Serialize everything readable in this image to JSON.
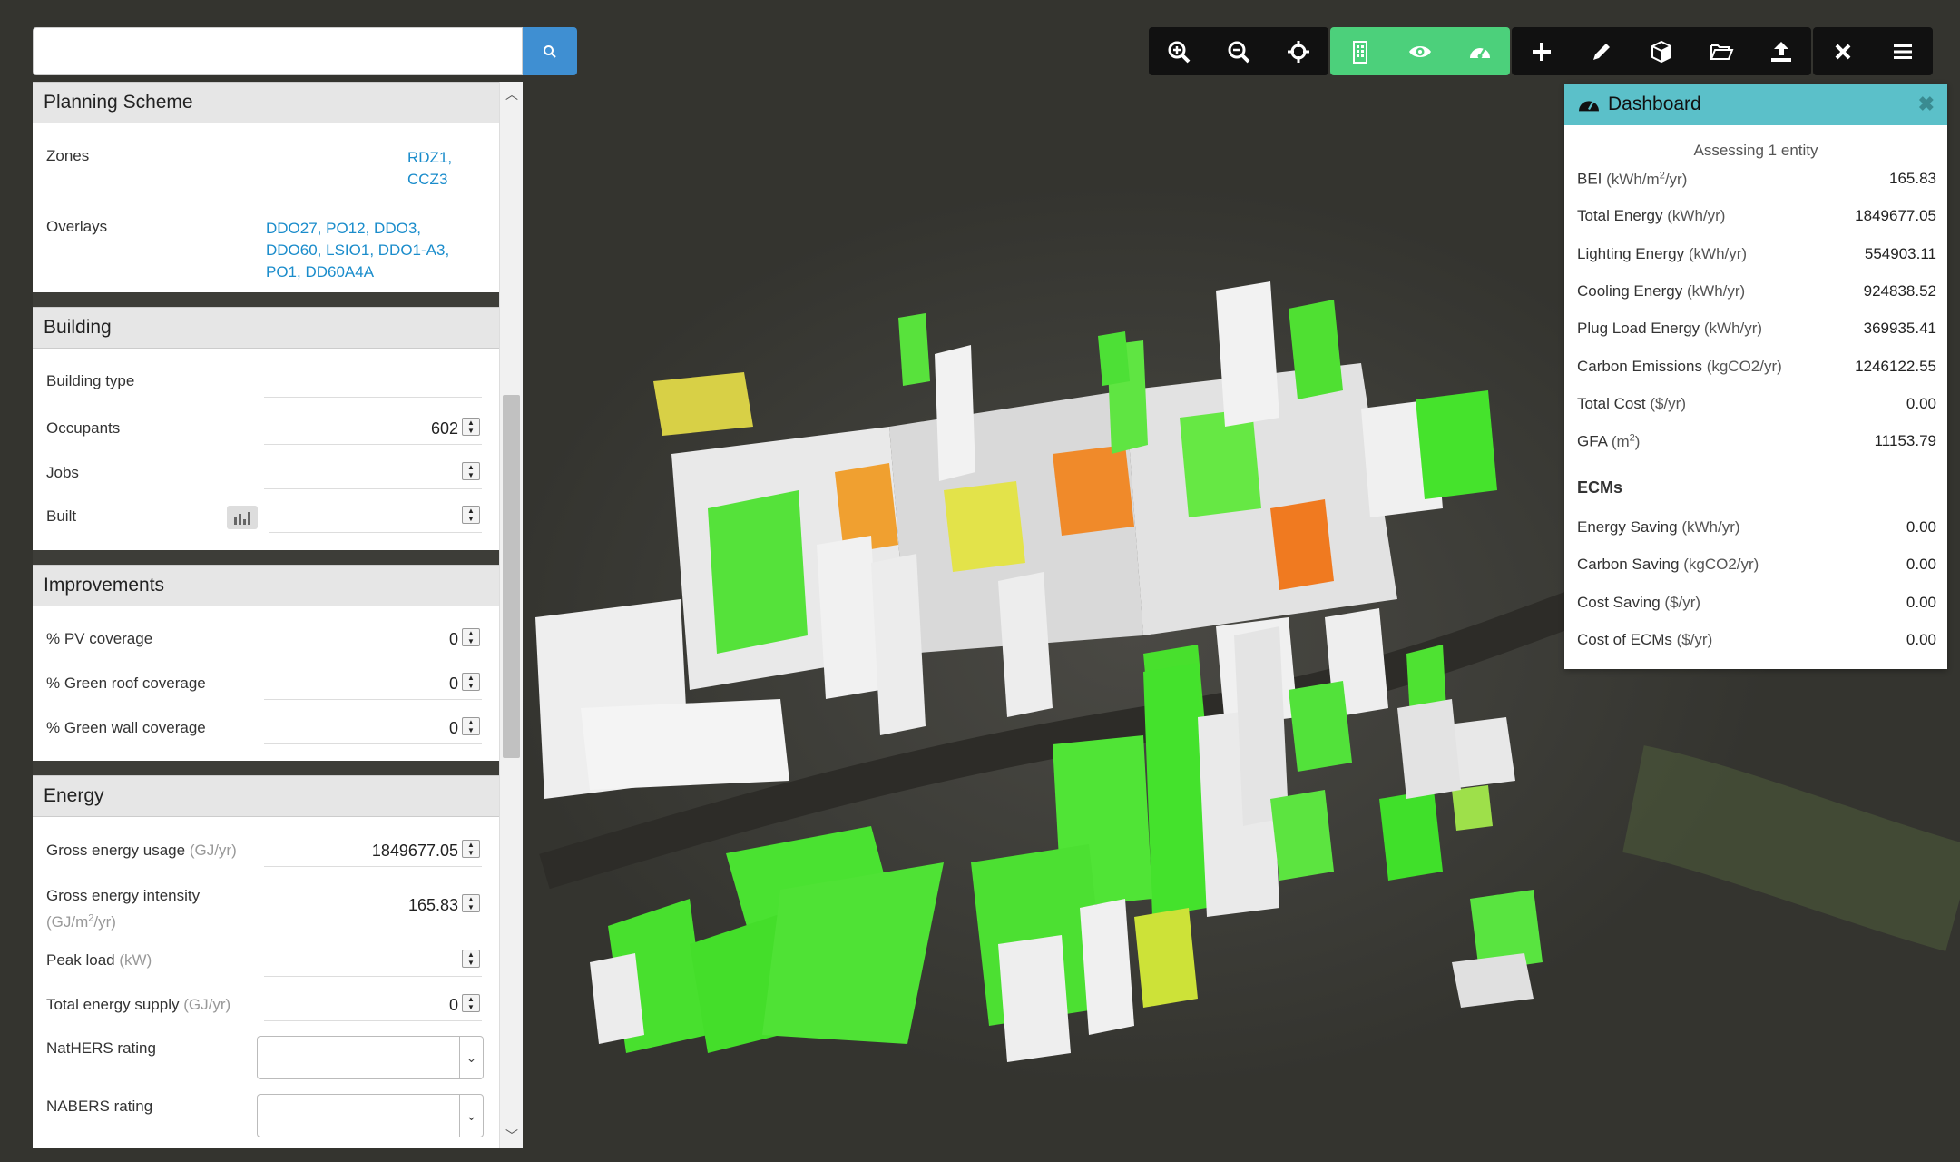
{
  "search": {
    "placeholder": ""
  },
  "colors": {
    "accent_blue": "#3f8fd2",
    "toolbar_black": "#111111",
    "toolbar_green": "#4cd07b",
    "dashboard_header": "#5bc0c9",
    "link": "#1a8ccb"
  },
  "planning_scheme": {
    "title": "Planning Scheme",
    "zones_label": "Zones",
    "zones": [
      "RDZ1,",
      "CCZ3"
    ],
    "overlays_label": "Overlays",
    "overlays_line1": "DDO27, PO12, DDO3,",
    "overlays_line2": "DDO60, LSIO1, DDO1-A3,",
    "overlays_line3": "PO1, DD60A4A"
  },
  "building": {
    "title": "Building",
    "type_label": "Building type",
    "occupants_label": "Occupants",
    "occupants_value": "602",
    "jobs_label": "Jobs",
    "built_label": "Built"
  },
  "improvements": {
    "title": "Improvements",
    "pv_label": "% PV coverage",
    "pv_value": "0",
    "green_roof_label": "% Green roof coverage",
    "green_roof_value": "0",
    "green_wall_label": "% Green wall coverage",
    "green_wall_value": "0"
  },
  "energy": {
    "title": "Energy",
    "gross_usage_label": "Gross energy usage",
    "gross_usage_unit": "(GJ/yr)",
    "gross_usage_value": "1849677.05",
    "gross_intensity_label": "Gross energy intensity",
    "gross_intensity_unit_a": "(GJ/m",
    "gross_intensity_unit_sup": "2",
    "gross_intensity_unit_b": "/yr)",
    "gross_intensity_value": "165.83",
    "peak_load_label": "Peak load",
    "peak_load_unit": "(kW)",
    "total_supply_label": "Total energy supply",
    "total_supply_unit": "(GJ/yr)",
    "total_supply_value": "0",
    "nathers_label": "NatHERS rating",
    "nabers_label": "NABERS rating"
  },
  "toolbar": {
    "groups": [
      [
        "zoom-in-icon",
        "zoom-out-icon",
        "crosshair-icon"
      ],
      [
        "building-icon",
        "eye-icon",
        "dashboard-gauge-icon"
      ],
      [
        "plus-icon",
        "pencil-icon",
        "cube-icon",
        "folder-open-icon",
        "upload-icon"
      ],
      [
        "close-icon",
        "menu-icon"
      ]
    ]
  },
  "dashboard": {
    "title": "Dashboard",
    "assessing": "Assessing 1 entity",
    "metrics": [
      {
        "label": "BEI",
        "unit": "(kWh/m",
        "sup": "2",
        "unit_end": "/yr)",
        "value": "165.83"
      },
      {
        "label": "Total Energy",
        "unit": "(kWh/yr)",
        "value": "1849677.05"
      },
      {
        "label": "Lighting Energy",
        "unit": "(kWh/yr)",
        "value": "554903.11"
      },
      {
        "label": "Cooling Energy",
        "unit": "(kWh/yr)",
        "value": "924838.52"
      },
      {
        "label": "Plug Load Energy",
        "unit": "(kWh/yr)",
        "value": "369935.41"
      },
      {
        "label": "Carbon Emissions",
        "unit": "(kgCO2/yr)",
        "value": "1246122.55"
      },
      {
        "label": "Total Cost",
        "unit": "($/yr)",
        "value": "0.00"
      },
      {
        "label": "GFA",
        "unit": "(m",
        "sup": "2",
        "unit_end": ")",
        "value": "11153.79"
      }
    ],
    "ecms_title": "ECMs",
    "ecms": [
      {
        "label": "Energy Saving",
        "unit": "(kWh/yr)",
        "value": "0.00"
      },
      {
        "label": "Carbon Saving",
        "unit": "(kgCO2/yr)",
        "value": "0.00"
      },
      {
        "label": "Cost Saving",
        "unit": "($/yr)",
        "value": "0.00"
      },
      {
        "label": "Cost of ECMs",
        "unit": "($/yr)",
        "value": "0.00"
      }
    ]
  }
}
